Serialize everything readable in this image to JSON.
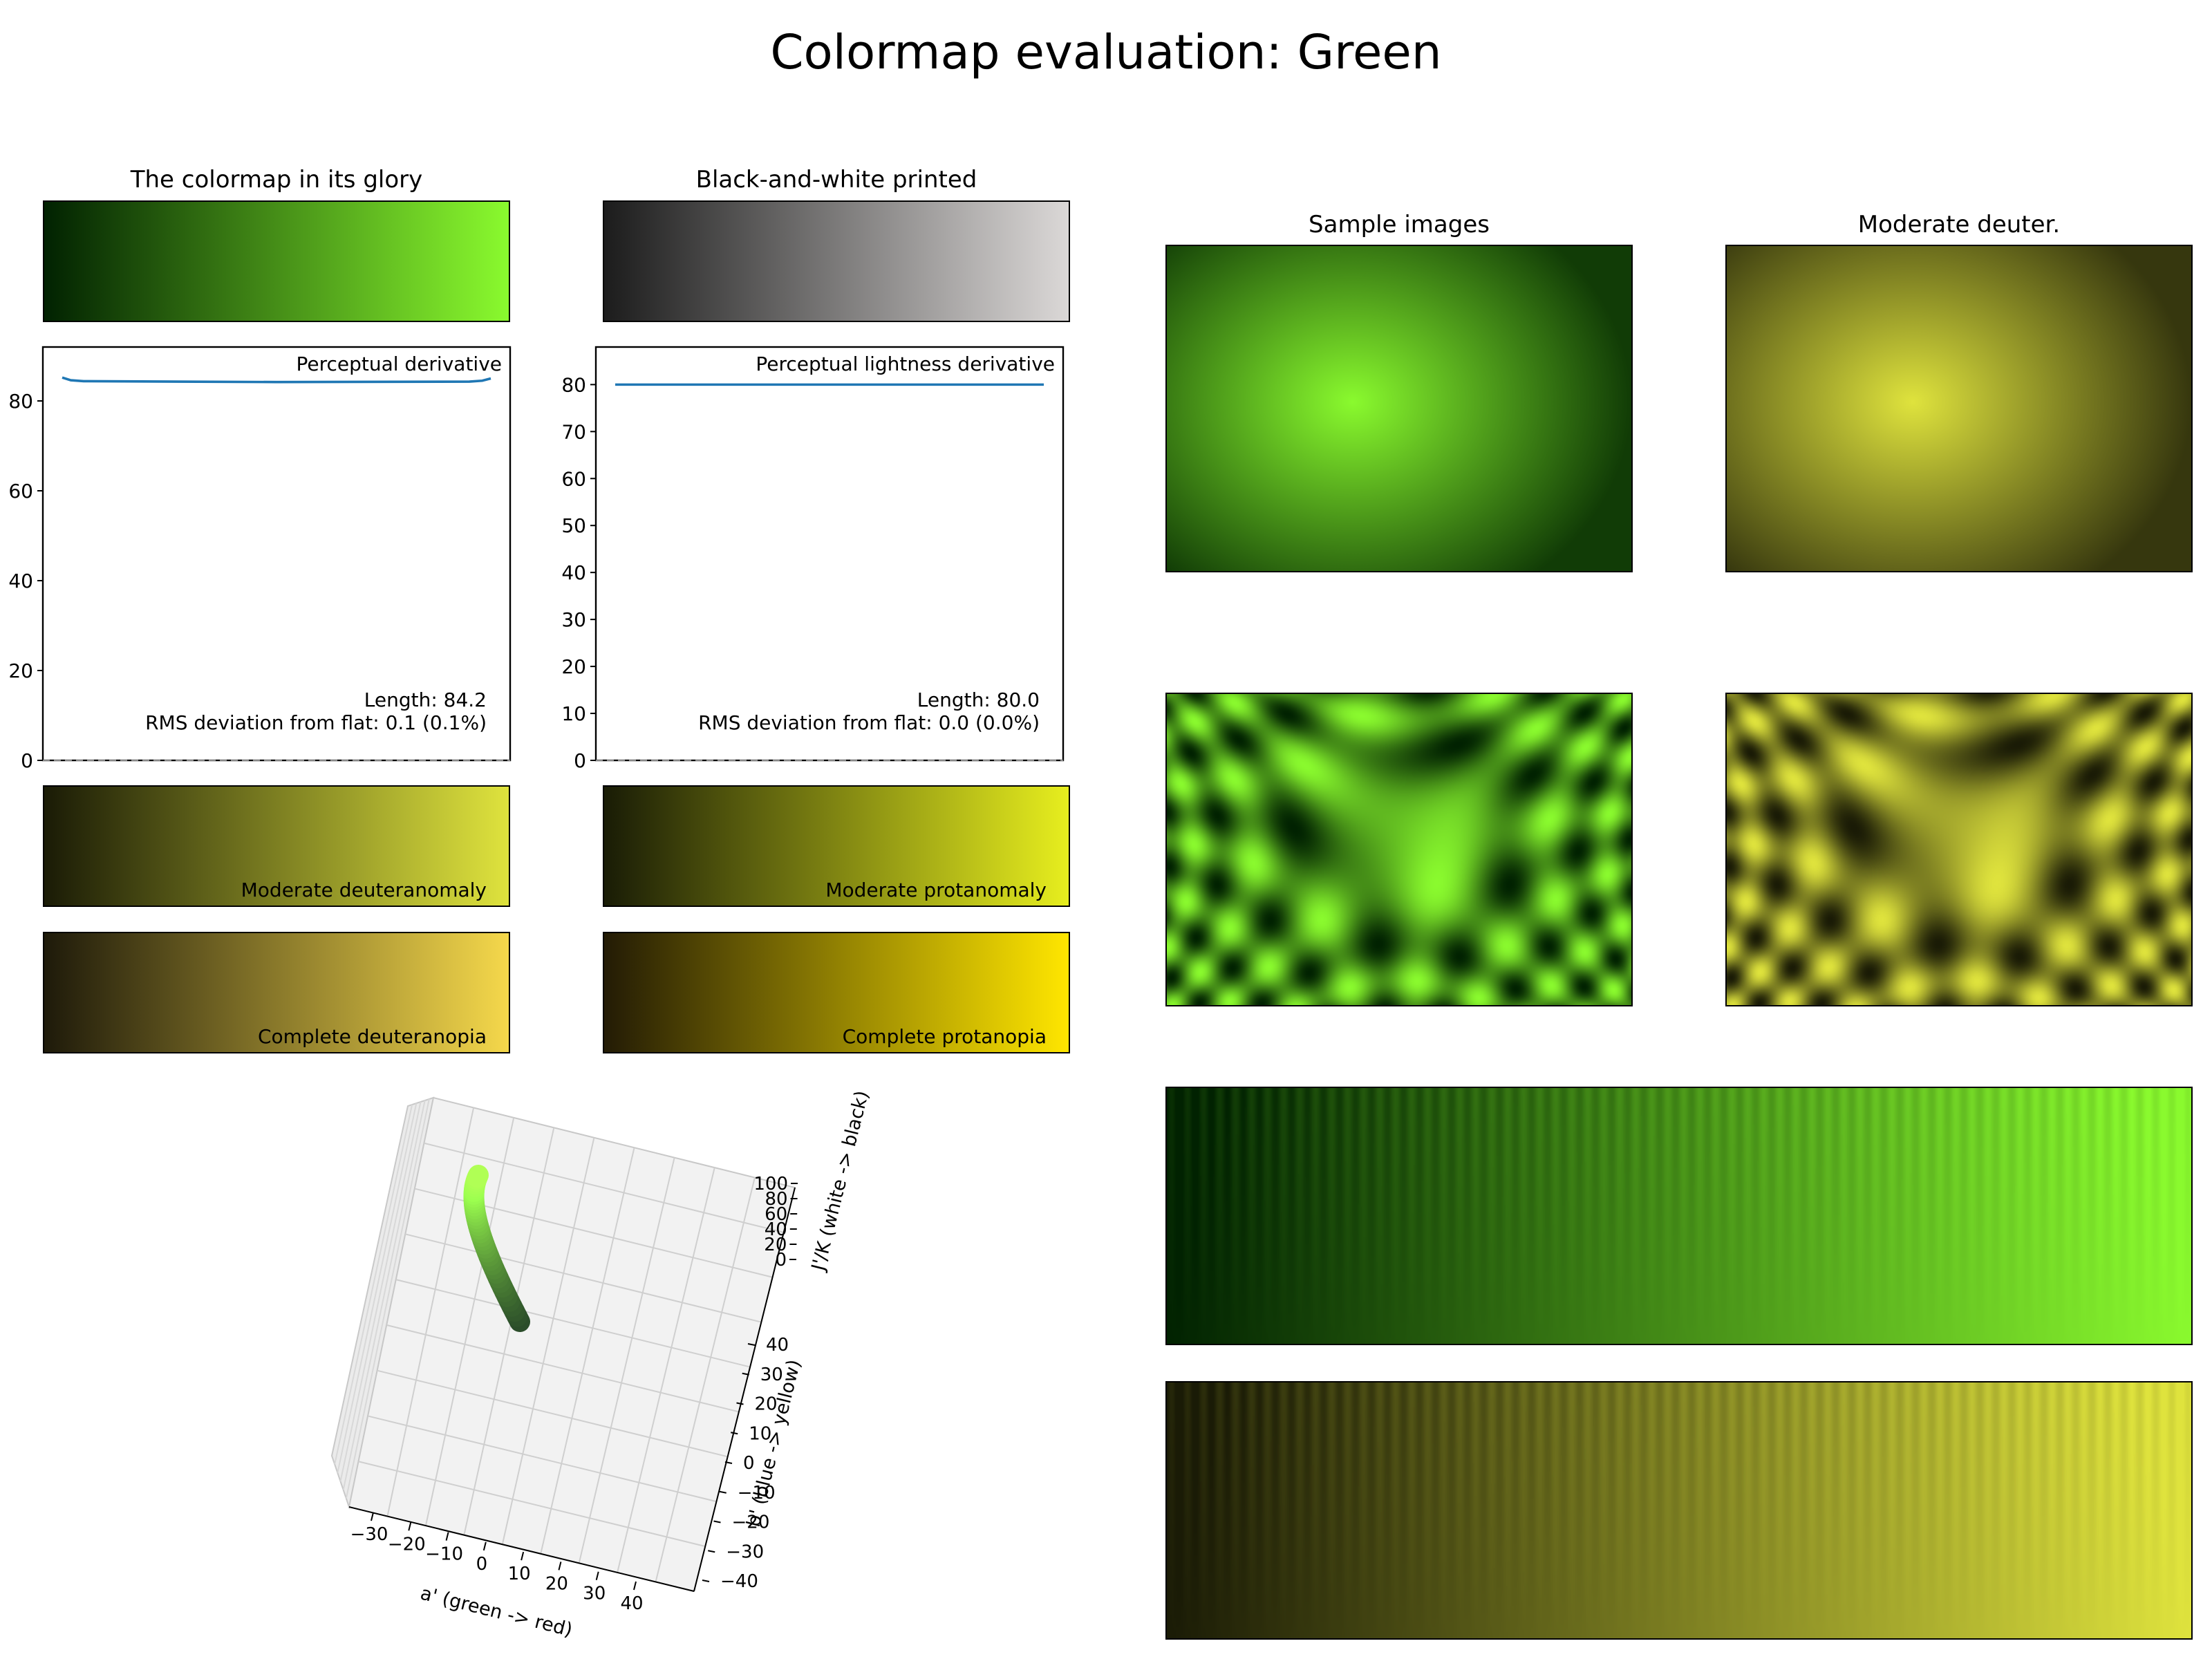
{
  "suptitle": "Colormap evaluation: Green",
  "colors": {
    "green_start": "#012201",
    "green_end": "#8afa2e",
    "gray_start": "#1c1c1c",
    "gray_end": "#dbd8d7",
    "deutan_mod_start": "#1a1b06",
    "deutan_mod_end": "#dfe33d",
    "protan_mod_start": "#191c06",
    "protan_mod_end": "#e7ee1e",
    "deutan_full_start": "#1e1a0a",
    "deutan_full_end": "#f5d84b",
    "protan_full_start": "#231b05",
    "protan_full_end": "#ffe600",
    "line_color": "#1f77b4"
  },
  "panels": {
    "glory_title": "The colormap in its glory",
    "bw_title": "Black-and-white printed",
    "sample_title": "Sample images",
    "deuter_title": "Moderate deuter.",
    "deuteranomaly_label": "Moderate deuteranomaly",
    "protanomaly_label": "Moderate protanomaly",
    "deuteranopia_label": "Complete deuteranopia",
    "protanopia_label": "Complete protanopia"
  },
  "chart_data": [
    {
      "type": "line",
      "title": "Perceptual derivative",
      "x": [
        0,
        0.02,
        0.05,
        0.5,
        0.95,
        0.98,
        1
      ],
      "values": [
        85.2,
        84.6,
        84.4,
        84.2,
        84.3,
        84.5,
        85.0
      ],
      "ylim": [
        0,
        92
      ],
      "yticks": [
        0,
        20,
        40,
        60,
        80
      ],
      "annotations": [
        "Length: 84.2",
        "RMS deviation from flat: 0.1 (0.1%)"
      ]
    },
    {
      "type": "line",
      "title": "Perceptual lightness derivative",
      "x": [
        0,
        1
      ],
      "values": [
        80.0,
        80.0
      ],
      "ylim": [
        0,
        88
      ],
      "yticks": [
        0,
        10,
        20,
        30,
        40,
        50,
        60,
        70,
        80
      ],
      "annotations": [
        "Length: 80.0",
        "RMS deviation from flat: 0.0 (0.0%)"
      ]
    },
    {
      "type": "line3d",
      "xlabel": "a' (green -> red)",
      "ylabel": "b' (blue -> yellow)",
      "zlabel": "J'/K (white -> black)",
      "xticks": [
        "−30",
        "−20",
        "−10",
        "0",
        "10",
        "20",
        "30",
        "40"
      ],
      "yticks": [
        "−40",
        "−30",
        "−20",
        "−10",
        "0",
        "10",
        "20",
        "30",
        "40"
      ],
      "zticks": [
        "0",
        "20",
        "40",
        "60",
        "80",
        "100"
      ]
    }
  ]
}
